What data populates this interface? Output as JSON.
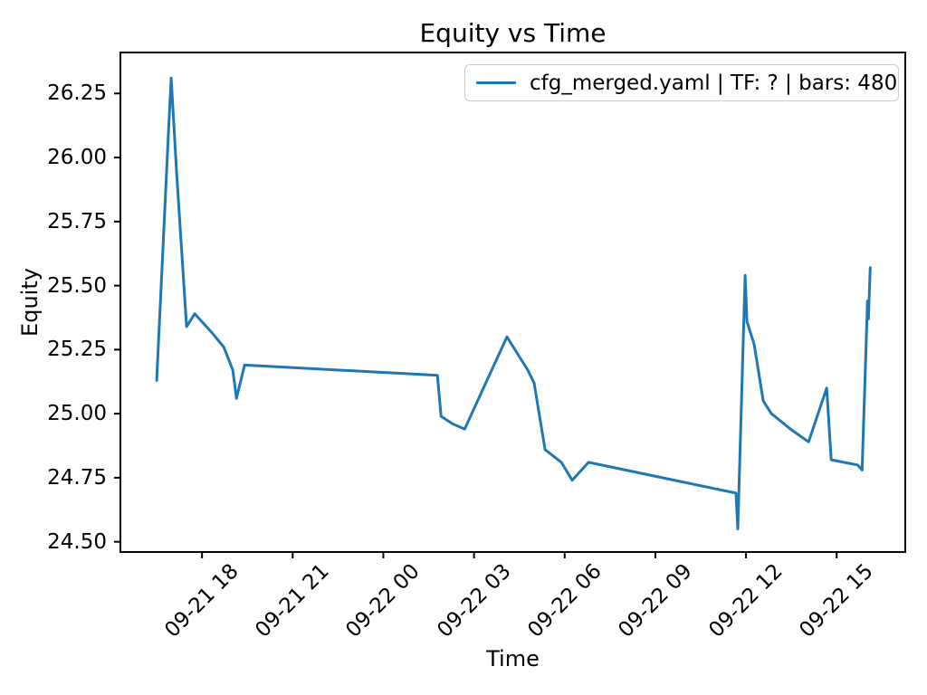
{
  "chart_data": {
    "type": "line",
    "title": "Equity vs Time",
    "xlabel": "Time",
    "ylabel": "Equity",
    "grid": false,
    "legend": {
      "position": "upper right",
      "entries": [
        {
          "label": "cfg_merged.yaml | TF: ? | bars: 480",
          "color": "#1f77b4"
        }
      ]
    },
    "x_axis": {
      "t_unit": "hours after 09-21 18:00",
      "lim": [
        -2.7,
        23.27
      ],
      "ticks": [
        {
          "t": 0,
          "label": "09-21 18"
        },
        {
          "t": 3,
          "label": "09-21 21"
        },
        {
          "t": 6,
          "label": "09-22 00"
        },
        {
          "t": 9,
          "label": "09-22 03"
        },
        {
          "t": 12,
          "label": "09-22 06"
        },
        {
          "t": 15,
          "label": "09-22 09"
        },
        {
          "t": 18,
          "label": "09-22 12"
        },
        {
          "t": 21,
          "label": "09-22 15"
        }
      ]
    },
    "y_axis": {
      "lim": [
        24.46,
        26.41
      ],
      "ticks": [
        "24.50",
        "24.75",
        "25.00",
        "25.25",
        "25.50",
        "25.75",
        "26.00",
        "26.25"
      ]
    },
    "series": [
      {
        "name": "cfg_merged.yaml | TF: ? | bars: 480",
        "color": "#1f77b4",
        "points": [
          [
            -1.5,
            25.13
          ],
          [
            -1.11,
            26.1
          ],
          [
            -1.02,
            26.31
          ],
          [
            -0.84,
            25.94
          ],
          [
            -0.51,
            25.34
          ],
          [
            -0.24,
            25.39
          ],
          [
            0.3,
            25.32
          ],
          [
            0.72,
            25.26
          ],
          [
            1.02,
            25.17
          ],
          [
            1.14,
            25.06
          ],
          [
            1.41,
            25.19
          ],
          [
            7.79,
            25.15
          ],
          [
            7.91,
            24.99
          ],
          [
            8.3,
            24.96
          ],
          [
            8.69,
            24.94
          ],
          [
            10.09,
            25.3
          ],
          [
            10.78,
            25.17
          ],
          [
            10.99,
            25.12
          ],
          [
            11.35,
            24.86
          ],
          [
            11.89,
            24.81
          ],
          [
            12.25,
            24.74
          ],
          [
            12.79,
            24.81
          ],
          [
            17.67,
            24.69
          ],
          [
            17.73,
            24.55
          ],
          [
            17.97,
            25.54
          ],
          [
            18.03,
            25.36
          ],
          [
            18.27,
            25.27
          ],
          [
            18.57,
            25.05
          ],
          [
            18.84,
            25.0
          ],
          [
            19.47,
            24.94
          ],
          [
            20.07,
            24.89
          ],
          [
            20.67,
            25.1
          ],
          [
            20.82,
            24.82
          ],
          [
            21.69,
            24.8
          ],
          [
            21.84,
            24.78
          ],
          [
            22.02,
            25.44
          ],
          [
            22.05,
            25.37
          ],
          [
            22.11,
            25.57
          ]
        ]
      }
    ]
  },
  "colors": {
    "line": "#1f77b4",
    "axes": "#000000",
    "background": "#ffffff",
    "legend_border": "#cccccc"
  }
}
